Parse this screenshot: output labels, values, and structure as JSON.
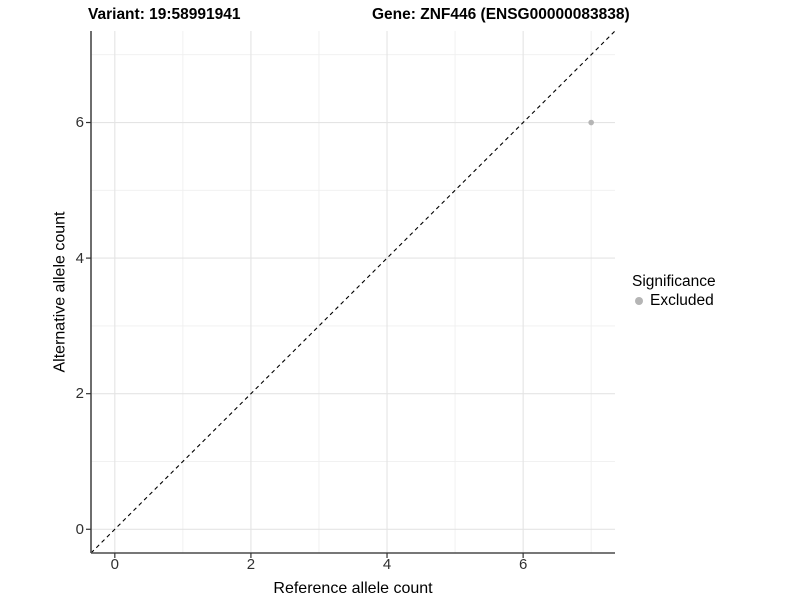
{
  "header": {
    "title_left": "Variant: 19:58991941",
    "title_right": "Gene: ZNF446 (ENSG00000083838)"
  },
  "chart_data": {
    "type": "scatter",
    "titles": [
      "Variant: 19:58991941",
      "Gene: ZNF446 (ENSG00000083838)"
    ],
    "xlabel": "Reference allele count",
    "ylabel": "Alternative allele count",
    "xlim": [
      -0.35,
      7.35
    ],
    "ylim": [
      -0.35,
      7.35
    ],
    "x_ticks": [
      0,
      2,
      4,
      6
    ],
    "y_ticks": [
      0,
      2,
      4,
      6
    ],
    "x_minor_gridlines": [
      1,
      3,
      5,
      7
    ],
    "y_minor_gridlines": [
      1,
      3,
      5,
      7
    ],
    "grid": true,
    "identity_line": {
      "style": "dashed",
      "from": [
        -0.35,
        -0.35
      ],
      "to": [
        7.35,
        7.35
      ],
      "color": "#000000"
    },
    "series": [
      {
        "name": "Excluded",
        "color": "#b5b5b5",
        "points": [
          [
            7,
            6
          ]
        ]
      }
    ],
    "legend": {
      "title": "Significance",
      "position": "right",
      "items": [
        {
          "label": "Excluded",
          "color": "#b5b5b5",
          "marker": "circle"
        }
      ]
    },
    "style": {
      "background": "#ffffff",
      "grid_major_color": "#e4e4e4",
      "grid_minor_color": "#efefef",
      "axis_line_color": "#4a4a4a",
      "tick_color": "#333333",
      "tick_label_color": "#303030",
      "point_radius": 2.8,
      "dash_pattern": "4 3.5"
    }
  }
}
